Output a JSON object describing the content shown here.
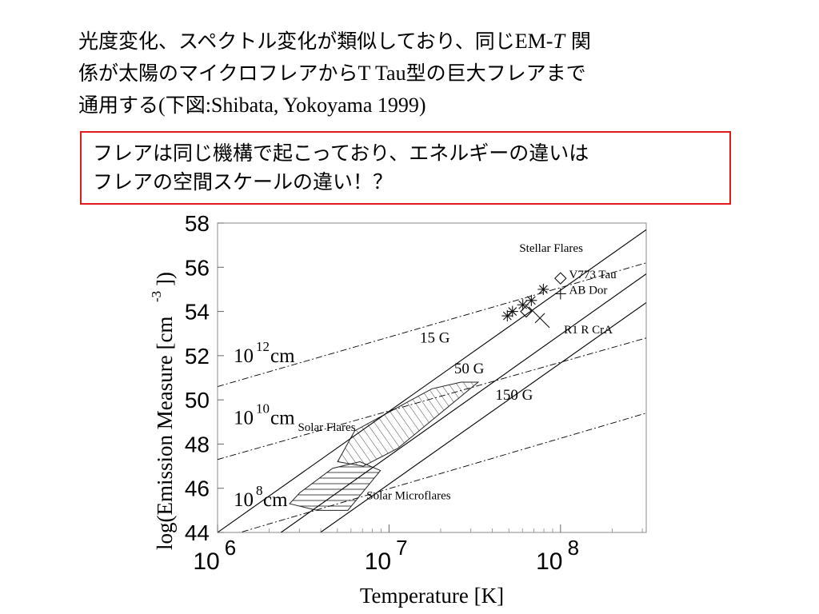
{
  "slide": {
    "title_line1": "光度変化、スペクトル変化が類似しており、同じ",
    "title_em": "EM-",
    "title_T": "T",
    "title_line1_end": "関",
    "title_line2_a": "係が太陽のマイクロフレアから",
    "title_line2_b": "T Tau",
    "title_line2_c": "型の巨大フレアまで",
    "title_line3_a": "通用する",
    "title_line3_b": "(",
    "title_line3_c": "下図",
    "title_line3_d": ":Shibata, Yokoyama 1999)"
  },
  "callout": {
    "line1": "フレアは同じ機構で起こっており、エネルギーの違いは",
    "line2": "フレアの空間スケールの違い！？"
  },
  "chart_data": {
    "type": "scatter",
    "xscale": "log",
    "xlim_log10": [
      6,
      8.5
    ],
    "ylim": [
      44,
      58
    ],
    "xlabel": "Temperature  [K]",
    "ylabel_main": "log(Emission Measure  [cm",
    "ylabel_sup": "-3",
    "ylabel_end": "])",
    "x_ticks": [
      {
        "base": "10",
        "exp": "6",
        "log10": 6
      },
      {
        "base": "10",
        "exp": "7",
        "log10": 7
      },
      {
        "base": "10",
        "exp": "8",
        "log10": 8
      }
    ],
    "y_ticks": [
      "44",
      "46",
      "48",
      "50",
      "52",
      "54",
      "56",
      "58"
    ],
    "field_lines": [
      {
        "label": "15 G",
        "points": [
          [
            6.0,
            44.0
          ],
          [
            8.5,
            57.7
          ]
        ]
      },
      {
        "label": "50 G",
        "points": [
          [
            6.37,
            44.0
          ],
          [
            8.5,
            55.7
          ]
        ]
      },
      {
        "label": "150 G",
        "points": [
          [
            6.6,
            44.0
          ],
          [
            8.5,
            54.4
          ]
        ]
      }
    ],
    "length_lines": [
      {
        "label_base": "10",
        "label_exp": "12",
        "label_unit": "cm",
        "points": [
          [
            6.0,
            50.6
          ],
          [
            8.5,
            56.2
          ]
        ]
      },
      {
        "label_base": "10",
        "label_exp": "10",
        "label_unit": "cm",
        "points": [
          [
            6.0,
            47.3
          ],
          [
            8.5,
            52.8
          ]
        ]
      },
      {
        "label_base": "10",
        "label_exp": "8",
        "label_unit": "cm",
        "points": [
          [
            6.0,
            43.7
          ],
          [
            8.5,
            49.4
          ]
        ]
      }
    ],
    "regions": [
      {
        "label": "Solar Flares",
        "hatch": "diagonal",
        "polygon": [
          [
            6.7,
            47.2
          ],
          [
            6.8,
            48.6
          ],
          [
            7.25,
            50.5
          ],
          [
            7.42,
            50.8
          ],
          [
            7.52,
            50.8
          ],
          [
            7.05,
            47.8
          ],
          [
            6.85,
            47.0
          ]
        ]
      },
      {
        "label": "Solar Microflares",
        "hatch": "horizontal",
        "polygon": [
          [
            6.42,
            45.3
          ],
          [
            6.58,
            45.0
          ],
          [
            6.76,
            45.0
          ],
          [
            6.95,
            46.8
          ],
          [
            6.83,
            47.2
          ],
          [
            6.67,
            46.9
          ],
          [
            6.48,
            45.8
          ]
        ]
      }
    ],
    "stellar_points": [
      {
        "marker": "asterisk",
        "x": 7.69,
        "y": 53.8
      },
      {
        "marker": "asterisk",
        "x": 7.72,
        "y": 54.0
      },
      {
        "marker": "asterisk",
        "x": 7.78,
        "y": 54.3
      },
      {
        "marker": "asterisk",
        "x": 7.83,
        "y": 54.5
      },
      {
        "marker": "asterisk",
        "x": 7.9,
        "y": 55.0
      },
      {
        "marker": "diamond",
        "x": 7.8,
        "y": 54.0
      },
      {
        "marker": "diamond",
        "x": 8.0,
        "y": 55.5
      },
      {
        "marker": "plus",
        "x": 8.0,
        "y": 54.8
      },
      {
        "marker": "cross",
        "x": 7.88,
        "y": 53.7
      }
    ],
    "annotations": [
      {
        "text": "Stellar Flares",
        "x": 7.76,
        "y": 56.7
      },
      {
        "text": "V773 Tau",
        "x": 8.05,
        "y": 55.5
      },
      {
        "text": "AB Dor",
        "x": 8.05,
        "y": 54.8
      },
      {
        "text": "R1 R CrA",
        "x": 8.02,
        "y": 53.0
      }
    ]
  }
}
